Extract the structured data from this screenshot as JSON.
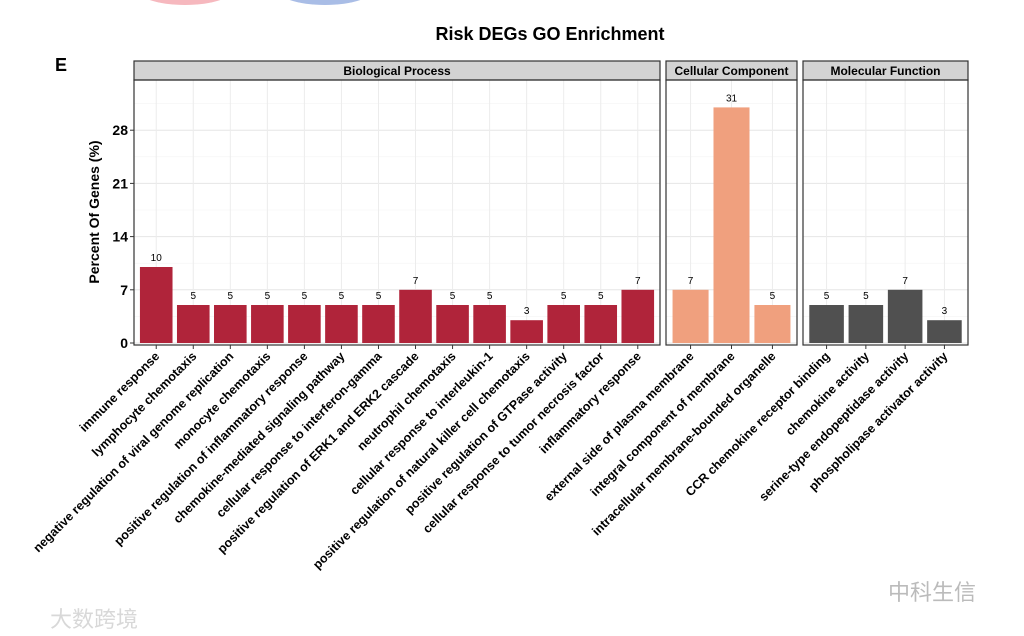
{
  "panel_label": "E",
  "watermarks": [
    "大数跨境",
    "中科生信"
  ],
  "chart_data": {
    "type": "bar",
    "title": "Risk DEGs GO Enrichment",
    "ylabel": "Percent Of Genes (%)",
    "xlabel": "",
    "ylim": [
      0,
      34.6
    ],
    "yticks": [
      0,
      7,
      14,
      21,
      28
    ],
    "grid": true,
    "facets": [
      {
        "name": "Biological Process",
        "color": "#B0243A",
        "categories": [
          "immune response",
          "lymphocyte chemotaxis",
          "negative regulation of viral genome replication",
          "monocyte chemotaxis",
          "positive regulation of inflammatory response",
          "chemokine-mediated signaling pathway",
          "cellular response to interferon-gamma",
          "positive regulation of ERK1 and ERK2 cascade",
          "neutrophil chemotaxis",
          "cellular response to interleukin-1",
          "positive regulation of natural killer cell chemotaxis",
          "positive regulation of GTPase activity",
          "cellular response to tumor necrosis factor",
          "inflammatory response"
        ],
        "values": [
          10,
          5,
          5,
          5,
          5,
          5,
          5,
          7,
          5,
          5,
          3,
          5,
          5,
          7
        ]
      },
      {
        "name": "Cellular Component",
        "color": "#F0A07E",
        "categories": [
          "external side of plasma membrane",
          "integral component of membrane",
          "intracellular membrane-bounded organelle"
        ],
        "values": [
          7,
          31,
          5
        ]
      },
      {
        "name": "Molecular Function",
        "color": "#505050",
        "categories": [
          "CCR chemokine receptor binding",
          "chemokine activity",
          "serine-type endopeptidase activity",
          "phospholipase activator activity"
        ],
        "values": [
          5,
          5,
          7,
          3
        ]
      }
    ]
  }
}
